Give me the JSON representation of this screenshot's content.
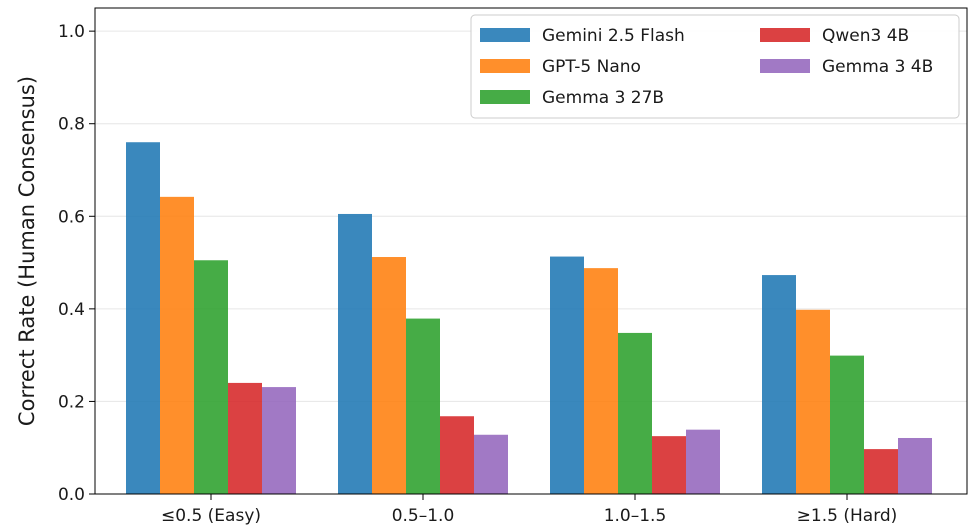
{
  "chart_data": {
    "type": "bar",
    "title": "",
    "xlabel": "",
    "ylabel": "Correct Rate (Human Consensus)",
    "ylim": [
      0.0,
      1.05
    ],
    "yticks": [
      "0.0",
      "0.2",
      "0.4",
      "0.6",
      "0.8",
      "1.0"
    ],
    "grid": true,
    "legend_position": "top-right",
    "categories": [
      "≤0.5 (Easy)",
      "0.5–1.0",
      "1.0–1.5",
      "≥1.5 (Hard)"
    ],
    "series": [
      {
        "name": "Gemini 2.5 Flash",
        "color": "#1f77b4",
        "values": [
          0.76,
          0.605,
          0.513,
          0.473
        ]
      },
      {
        "name": "GPT-5 Nano",
        "color": "#ff7f0e",
        "values": [
          0.642,
          0.512,
          0.488,
          0.398
        ]
      },
      {
        "name": "Gemma 3 27B",
        "color": "#2ca02c",
        "values": [
          0.505,
          0.379,
          0.348,
          0.299
        ]
      },
      {
        "name": "Qwen3 4B",
        "color": "#d62728",
        "values": [
          0.24,
          0.168,
          0.125,
          0.097
        ]
      },
      {
        "name": "Gemma 3 4B",
        "color": "#9467bd",
        "values": [
          0.231,
          0.128,
          0.139,
          0.121
        ]
      }
    ]
  }
}
